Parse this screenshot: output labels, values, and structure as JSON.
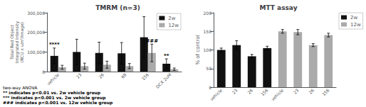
{
  "chart_data": [
    {
      "type": "bar",
      "title": "TMRM (n=3)",
      "ylabel": "Total Red Object\nIntegrated Intensity\n(RCU x um²/Image)",
      "categories": [
        "vehicle",
        "23",
        "26",
        "68",
        "156",
        "DCX 2uM"
      ],
      "series": [
        {
          "name": "2w",
          "color": "#111111",
          "values": [
            80000,
            100000,
            95000,
            93000,
            175000,
            40000
          ],
          "errors": [
            40000,
            65000,
            55000,
            55000,
            105000,
            25000
          ]
        },
        {
          "name": "12w",
          "color": "#aaaaaa",
          "values": [
            22000,
            28000,
            35000,
            28000,
            95000,
            12000
          ],
          "errors": [
            10000,
            15000,
            18000,
            13000,
            45000,
            6000
          ]
        }
      ],
      "ylim": [
        0,
        300000
      ],
      "yticks": [
        0,
        {
          "value": 100000,
          "label": "100,000"
        },
        {
          "value": 200000,
          "label": "200,000"
        },
        {
          "value": 300000,
          "label": "300,000"
        }
      ],
      "annotations": [
        {
          "category": "vehicle",
          "series": "2w",
          "text": "****"
        },
        {
          "category": "156",
          "series": "12w",
          "text": "###"
        },
        {
          "category": "DCX 2uM",
          "series": "2w",
          "text": "**"
        }
      ],
      "footnotes": [
        "two-way ANOVA",
        "** indicates p<0.01 vs. 2w vehicle group",
        "*** indicates p<0.001 vs. 2w vehicle group",
        "### indicates p<0.001 vs. 12w vehicle group"
      ],
      "legend": "upper right",
      "grid": false
    },
    {
      "type": "bar",
      "title": "MTT assay",
      "ylabel": "% of control",
      "categories": [
        "vehicle",
        "23",
        "26",
        "156",
        "vehicle",
        "23",
        "26",
        "156"
      ],
      "series": [
        {
          "name": "2w",
          "color": "#111111",
          "values": [
            100,
            113,
            83,
            105,
            null,
            null,
            null,
            null
          ],
          "errors": [
            5,
            12,
            5,
            5,
            null,
            null,
            null,
            null
          ]
        },
        {
          "name": "12w",
          "color": "#aaaaaa",
          "values": [
            null,
            null,
            null,
            null,
            150,
            148,
            113,
            140
          ],
          "errors": [
            null,
            null,
            null,
            null,
            5,
            7,
            4,
            5
          ]
        }
      ],
      "ylim": [
        0,
        200
      ],
      "yticks": [
        0,
        50,
        100,
        150,
        200
      ],
      "legend": "right",
      "grid": false
    }
  ]
}
